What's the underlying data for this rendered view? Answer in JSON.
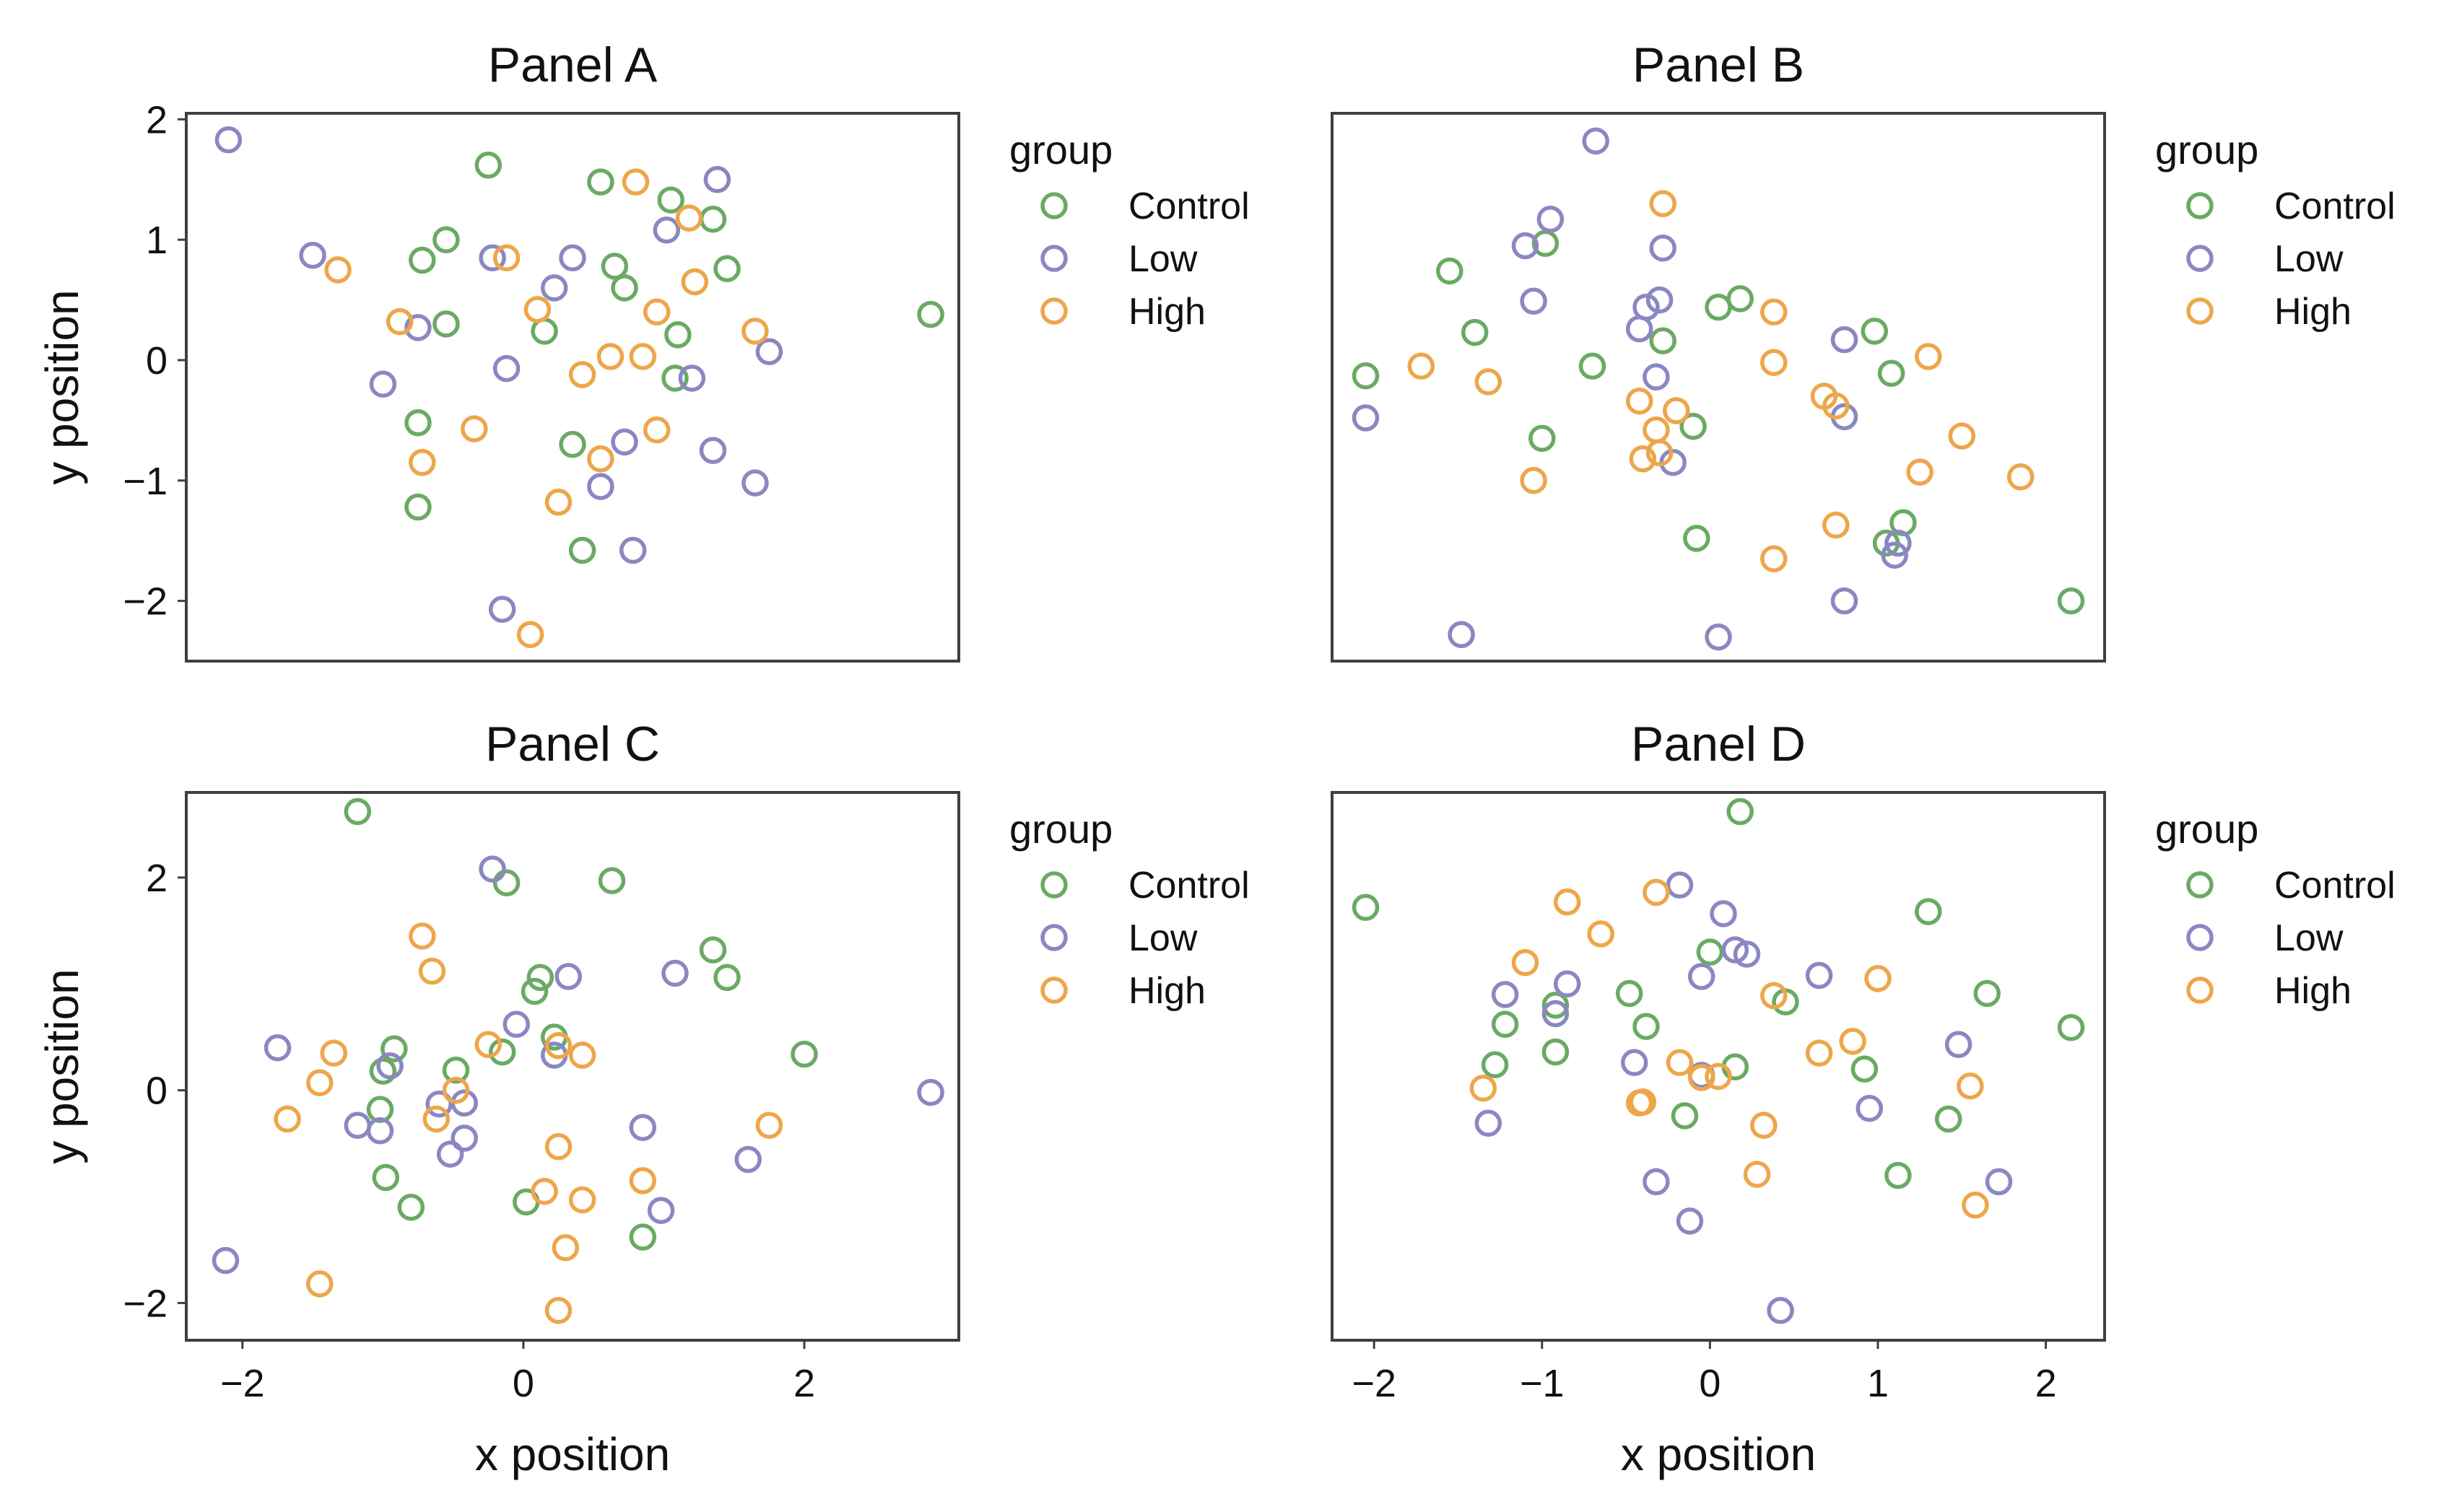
{
  "chart_data": {
    "type": "scatter",
    "shared": {
      "x_axis_label": "x position",
      "y_axis_label": "y position",
      "legend_title": "group",
      "groups": [
        {
          "name": "Control",
          "color": "#6aaa64"
        },
        {
          "name": "Low",
          "color": "#8b87c2"
        },
        {
          "name": "High",
          "color": "#eda64a"
        }
      ],
      "legend_placement": "right, outside each panel",
      "marker": "open circle",
      "grid": false
    },
    "panels": [
      {
        "title": "Panel A",
        "xlim": [
          -2.4,
          3.1
        ],
        "ylim": [
          -2.5,
          2.05
        ],
        "yticks": [
          -2,
          -1,
          0,
          1,
          2
        ],
        "xticks": [],
        "show_ylabel": true,
        "show_xlabel": false,
        "series": [
          {
            "name": "Control",
            "points": [
              [
                -0.25,
                1.62
              ],
              [
                0.55,
                1.48
              ],
              [
                1.05,
                1.33
              ],
              [
                1.35,
                1.17
              ],
              [
                -0.55,
                1.0
              ],
              [
                -0.72,
                0.83
              ],
              [
                0.65,
                0.78
              ],
              [
                1.45,
                0.76
              ],
              [
                0.72,
                0.6
              ],
              [
                2.9,
                0.38
              ],
              [
                -0.55,
                0.3
              ],
              [
                0.15,
                0.24
              ],
              [
                1.1,
                0.21
              ],
              [
                1.08,
                -0.15
              ],
              [
                -0.75,
                -0.52
              ],
              [
                0.35,
                -0.7
              ],
              [
                -0.75,
                -1.22
              ],
              [
                0.42,
                -1.58
              ]
            ]
          },
          {
            "name": "Low",
            "points": [
              [
                -2.1,
                1.83
              ],
              [
                1.38,
                1.5
              ],
              [
                1.02,
                1.08
              ],
              [
                -1.5,
                0.87
              ],
              [
                -0.22,
                0.85
              ],
              [
                0.35,
                0.85
              ],
              [
                0.22,
                0.6
              ],
              [
                -0.75,
                0.27
              ],
              [
                1.75,
                0.07
              ],
              [
                -0.12,
                -0.07
              ],
              [
                1.2,
                -0.15
              ],
              [
                -1.0,
                -0.2
              ],
              [
                0.72,
                -0.68
              ],
              [
                1.35,
                -0.75
              ],
              [
                0.55,
                -1.05
              ],
              [
                1.65,
                -1.02
              ],
              [
                0.78,
                -1.58
              ],
              [
                -0.15,
                -2.07
              ]
            ]
          },
          {
            "name": "High",
            "points": [
              [
                0.8,
                1.48
              ],
              [
                1.18,
                1.18
              ],
              [
                -0.12,
                0.85
              ],
              [
                -1.32,
                0.75
              ],
              [
                1.22,
                0.65
              ],
              [
                0.1,
                0.42
              ],
              [
                0.95,
                0.4
              ],
              [
                -0.88,
                0.32
              ],
              [
                1.65,
                0.24
              ],
              [
                0.62,
                0.03
              ],
              [
                0.85,
                0.03
              ],
              [
                0.42,
                -0.12
              ],
              [
                -0.35,
                -0.57
              ],
              [
                0.95,
                -0.58
              ],
              [
                0.55,
                -0.82
              ],
              [
                -0.72,
                -0.85
              ],
              [
                0.25,
                -1.18
              ],
              [
                0.05,
                -2.28
              ]
            ]
          }
        ]
      },
      {
        "title": "Panel B",
        "xlim": [
          -2.25,
          2.35
        ],
        "ylim": [
          -2.5,
          2.05
        ],
        "yticks": [],
        "xticks": [],
        "show_ylabel": false,
        "show_xlabel": false,
        "series": [
          {
            "name": "Control",
            "points": [
              [
                -0.98,
                0.97
              ],
              [
                -1.55,
                0.74
              ],
              [
                0.18,
                0.51
              ],
              [
                0.05,
                0.44
              ],
              [
                -1.4,
                0.23
              ],
              [
                0.98,
                0.24
              ],
              [
                -0.28,
                0.16
              ],
              [
                -0.7,
                -0.05
              ],
              [
                -2.05,
                -0.13
              ],
              [
                1.08,
                -0.11
              ],
              [
                -0.1,
                -0.55
              ],
              [
                -1.0,
                -0.65
              ],
              [
                1.15,
                -1.35
              ],
              [
                1.05,
                -1.52
              ],
              [
                -0.08,
                -1.48
              ],
              [
                2.15,
                -2.0
              ]
            ]
          },
          {
            "name": "Low",
            "points": [
              [
                -0.68,
                1.82
              ],
              [
                -0.95,
                1.17
              ],
              [
                -1.1,
                0.95
              ],
              [
                -0.28,
                0.93
              ],
              [
                -1.05,
                0.49
              ],
              [
                -0.3,
                0.5
              ],
              [
                -0.38,
                0.44
              ],
              [
                -0.42,
                0.26
              ],
              [
                0.8,
                0.17
              ],
              [
                -0.32,
                -0.14
              ],
              [
                -2.05,
                -0.48
              ],
              [
                0.8,
                -0.47
              ],
              [
                -0.22,
                -0.85
              ],
              [
                1.12,
                -1.52
              ],
              [
                1.1,
                -1.62
              ],
              [
                0.8,
                -2.0
              ],
              [
                -1.48,
                -2.28
              ],
              [
                0.05,
                -2.3
              ]
            ]
          },
          {
            "name": "High",
            "points": [
              [
                -0.28,
                1.3
              ],
              [
                0.38,
                0.4
              ],
              [
                1.3,
                0.03
              ],
              [
                0.38,
                -0.02
              ],
              [
                -1.72,
                -0.05
              ],
              [
                -1.32,
                -0.18
              ],
              [
                0.68,
                -0.3
              ],
              [
                0.75,
                -0.38
              ],
              [
                -0.42,
                -0.34
              ],
              [
                -0.2,
                -0.42
              ],
              [
                -0.32,
                -0.58
              ],
              [
                1.5,
                -0.63
              ],
              [
                -0.3,
                -0.77
              ],
              [
                -0.4,
                -0.82
              ],
              [
                1.25,
                -0.93
              ],
              [
                1.85,
                -0.97
              ],
              [
                -1.05,
                -1.0
              ],
              [
                0.75,
                -1.37
              ],
              [
                0.38,
                -1.65
              ]
            ]
          }
        ]
      },
      {
        "title": "Panel C",
        "xlim": [
          -2.4,
          3.1
        ],
        "ylim": [
          -2.35,
          2.8
        ],
        "yticks": [
          -2,
          0,
          2
        ],
        "xticks": [
          -2,
          0,
          2
        ],
        "show_ylabel": true,
        "show_xlabel": true,
        "series": [
          {
            "name": "Control",
            "points": [
              [
                -1.18,
                2.62
              ],
              [
                -0.12,
                1.95
              ],
              [
                0.63,
                1.97
              ],
              [
                1.35,
                1.32
              ],
              [
                0.12,
                1.06
              ],
              [
                1.45,
                1.06
              ],
              [
                0.08,
                0.93
              ],
              [
                0.22,
                0.5
              ],
              [
                -0.92,
                0.39
              ],
              [
                -0.15,
                0.36
              ],
              [
                2.0,
                0.34
              ],
              [
                -1.0,
                0.18
              ],
              [
                -0.48,
                0.19
              ],
              [
                -1.02,
                -0.18
              ],
              [
                -0.98,
                -0.82
              ],
              [
                -0.8,
                -1.1
              ],
              [
                0.02,
                -1.05
              ],
              [
                0.85,
                -1.38
              ]
            ]
          },
          {
            "name": "Low",
            "points": [
              [
                -0.22,
                2.08
              ],
              [
                0.32,
                1.07
              ],
              [
                1.08,
                1.1
              ],
              [
                -0.05,
                0.62
              ],
              [
                -1.75,
                0.4
              ],
              [
                0.22,
                0.33
              ],
              [
                -0.95,
                0.23
              ],
              [
                -0.6,
                -0.13
              ],
              [
                -0.42,
                -0.12
              ],
              [
                -1.18,
                -0.33
              ],
              [
                -1.02,
                -0.38
              ],
              [
                0.85,
                -0.35
              ],
              [
                -0.42,
                -0.45
              ],
              [
                -0.52,
                -0.6
              ],
              [
                1.6,
                -0.65
              ],
              [
                0.98,
                -1.13
              ],
              [
                -2.12,
                -1.6
              ],
              [
                2.9,
                -0.02
              ]
            ]
          },
          {
            "name": "High",
            "points": [
              [
                -0.72,
                1.45
              ],
              [
                -0.65,
                1.12
              ],
              [
                -0.25,
                0.43
              ],
              [
                0.25,
                0.42
              ],
              [
                0.42,
                0.33
              ],
              [
                -1.35,
                0.35
              ],
              [
                -1.45,
                0.07
              ],
              [
                -0.48,
                0.0
              ],
              [
                -1.68,
                -0.27
              ],
              [
                -0.62,
                -0.27
              ],
              [
                1.75,
                -0.33
              ],
              [
                0.25,
                -0.53
              ],
              [
                0.85,
                -0.85
              ],
              [
                0.15,
                -0.95
              ],
              [
                0.42,
                -1.03
              ],
              [
                0.3,
                -1.48
              ],
              [
                -1.45,
                -1.82
              ],
              [
                0.25,
                -2.07
              ]
            ]
          }
        ]
      },
      {
        "title": "Panel D",
        "xlim": [
          -2.25,
          2.35
        ],
        "ylim": [
          -2.35,
          2.8
        ],
        "yticks": [],
        "xticks": [
          -2,
          -1,
          0,
          1,
          2
        ],
        "show_ylabel": false,
        "show_xlabel": true,
        "series": [
          {
            "name": "Control",
            "points": [
              [
                0.18,
                2.62
              ],
              [
                -2.05,
                1.72
              ],
              [
                1.3,
                1.68
              ],
              [
                0.0,
                1.3
              ],
              [
                -0.48,
                0.91
              ],
              [
                1.65,
                0.91
              ],
              [
                0.45,
                0.83
              ],
              [
                -0.92,
                0.8
              ],
              [
                -1.22,
                0.62
              ],
              [
                -0.38,
                0.6
              ],
              [
                2.15,
                0.59
              ],
              [
                -0.92,
                0.36
              ],
              [
                -1.28,
                0.24
              ],
              [
                0.15,
                0.22
              ],
              [
                0.92,
                0.2
              ],
              [
                -0.15,
                -0.24
              ],
              [
                1.42,
                -0.27
              ],
              [
                1.12,
                -0.8
              ]
            ]
          },
          {
            "name": "Low",
            "points": [
              [
                -0.18,
                1.93
              ],
              [
                0.08,
                1.66
              ],
              [
                0.15,
                1.32
              ],
              [
                0.22,
                1.28
              ],
              [
                0.65,
                1.08
              ],
              [
                -0.05,
                1.07
              ],
              [
                -0.85,
                1.0
              ],
              [
                -1.22,
                0.9
              ],
              [
                -0.92,
                0.72
              ],
              [
                1.48,
                0.43
              ],
              [
                -0.45,
                0.26
              ],
              [
                -0.05,
                0.14
              ],
              [
                0.95,
                -0.17
              ],
              [
                -1.32,
                -0.31
              ],
              [
                1.72,
                -0.86
              ],
              [
                -0.32,
                -0.86
              ],
              [
                -0.12,
                -1.23
              ],
              [
                0.42,
                -2.07
              ]
            ]
          },
          {
            "name": "High",
            "points": [
              [
                -0.32,
                1.86
              ],
              [
                -0.85,
                1.77
              ],
              [
                -0.65,
                1.47
              ],
              [
                -1.1,
                1.2
              ],
              [
                1.0,
                1.05
              ],
              [
                0.38,
                0.89
              ],
              [
                0.85,
                0.46
              ],
              [
                0.65,
                0.35
              ],
              [
                -0.18,
                0.26
              ],
              [
                -0.05,
                0.12
              ],
              [
                0.05,
                0.13
              ],
              [
                -1.35,
                0.02
              ],
              [
                1.55,
                0.04
              ],
              [
                -0.42,
                -0.12
              ],
              [
                -0.4,
                -0.11
              ],
              [
                0.32,
                -0.33
              ],
              [
                0.28,
                -0.79
              ],
              [
                1.58,
                -1.08
              ]
            ]
          }
        ]
      }
    ]
  }
}
